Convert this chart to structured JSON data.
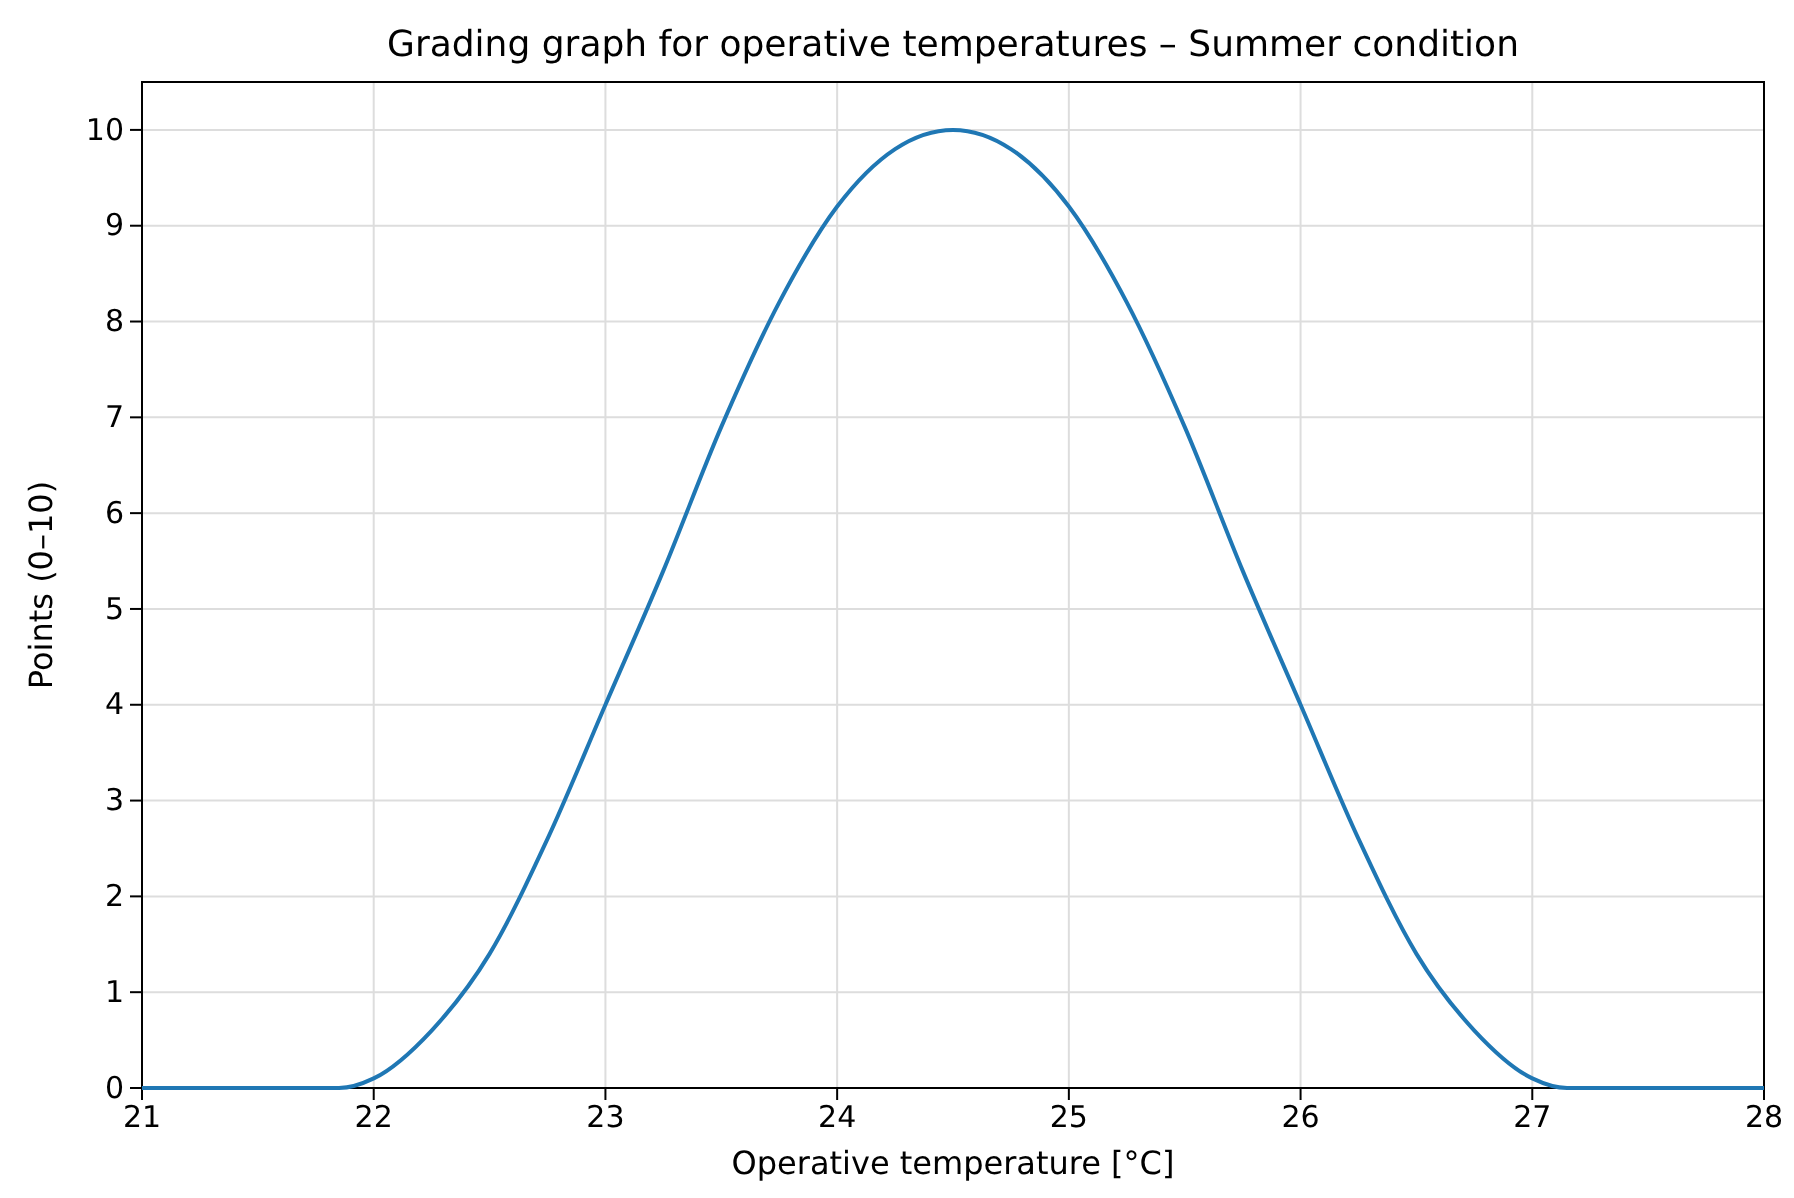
{
  "chart_data": {
    "type": "line",
    "title": "Grading graph for operative temperatures – Summer condition",
    "xlabel": "Operative temperature [°C]",
    "ylabel": "Points (0–10)",
    "x": [
      21,
      21.5,
      21.85,
      22,
      22.25,
      22.5,
      22.75,
      23,
      23.25,
      23.5,
      23.75,
      24,
      24.25,
      24.5,
      24.75,
      25,
      25.25,
      25.5,
      25.75,
      26,
      26.25,
      26.5,
      26.75,
      27,
      27.15,
      27.5,
      28
    ],
    "series": [
      {
        "color": "#1f77b4",
        "values": [
          0,
          0,
          0,
          0.1,
          0.6,
          1.4,
          2.6,
          4.0,
          5.4,
          6.9,
          8.2,
          9.2,
          9.8,
          10,
          9.8,
          9.2,
          8.2,
          6.9,
          5.4,
          4.0,
          2.6,
          1.4,
          0.6,
          0.1,
          0,
          0,
          0
        ]
      }
    ],
    "xlim": [
      21,
      28
    ],
    "xticks": [
      21,
      22,
      23,
      24,
      25,
      26,
      27,
      28
    ],
    "ylim": [
      0,
      10.5
    ],
    "yticks": [
      0,
      1,
      2,
      3,
      4,
      5,
      6,
      7,
      8,
      9,
      10
    ],
    "grid": true,
    "marker": "none",
    "line_style": "solid"
  }
}
